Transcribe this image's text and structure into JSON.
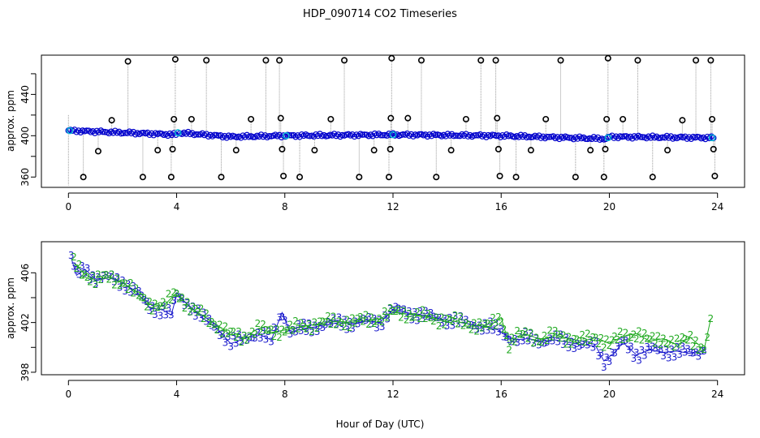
{
  "figure": {
    "title": "HDP_090714  CO2 Timeseries",
    "xlabel": "Hour of Day (UTC)"
  },
  "colors": {
    "raw_points": "#000000",
    "drop_lines": "#9a9a9a",
    "smoothed": "#0000cc",
    "highlight": "#00bcd4",
    "series_3": "#1a1acc",
    "series_2": "#22aa22"
  },
  "chart_data": [
    {
      "type": "scatter",
      "name": "raw-timeseries",
      "title": "",
      "xlabel": "",
      "ylabel": "approx. ppm",
      "xlim": [
        -1,
        25
      ],
      "ylim": [
        350,
        478
      ],
      "xticks": [
        0,
        4,
        8,
        12,
        16,
        20,
        24
      ],
      "yticks": [
        360,
        400,
        440
      ],
      "yticks_minor": [
        380,
        420,
        460
      ],
      "baseline": [
        [
          0,
          405
        ],
        [
          2,
          403
        ],
        [
          4,
          401
        ],
        [
          4.01,
          403
        ],
        [
          6,
          399
        ],
        [
          7.9,
          400
        ],
        [
          8,
          400
        ],
        [
          12,
          401
        ],
        [
          15.95,
          400
        ],
        [
          16,
          400
        ],
        [
          19.9,
          397
        ],
        [
          20,
          399
        ],
        [
          24,
          398
        ]
      ],
      "outliers": [
        {
          "x": 0.55,
          "y": 360
        },
        {
          "x": 1.1,
          "y": 385
        },
        {
          "x": 1.6,
          "y": 415
        },
        {
          "x": 2.2,
          "y": 472
        },
        {
          "x": 2.75,
          "y": 360
        },
        {
          "x": 3.3,
          "y": 386
        },
        {
          "x": 3.8,
          "y": 360
        },
        {
          "x": 3.85,
          "y": 387
        },
        {
          "x": 3.9,
          "y": 416
        },
        {
          "x": 3.95,
          "y": 474
        },
        {
          "x": 4.55,
          "y": 416
        },
        {
          "x": 5.1,
          "y": 473
        },
        {
          "x": 5.65,
          "y": 360
        },
        {
          "x": 6.2,
          "y": 386
        },
        {
          "x": 6.75,
          "y": 416
        },
        {
          "x": 7.3,
          "y": 473
        },
        {
          "x": 7.8,
          "y": 473
        },
        {
          "x": 7.85,
          "y": 417
        },
        {
          "x": 7.9,
          "y": 387
        },
        {
          "x": 7.95,
          "y": 361
        },
        {
          "x": 8.55,
          "y": 360
        },
        {
          "x": 9.1,
          "y": 386
        },
        {
          "x": 9.7,
          "y": 416
        },
        {
          "x": 10.2,
          "y": 473
        },
        {
          "x": 10.75,
          "y": 360
        },
        {
          "x": 11.3,
          "y": 386
        },
        {
          "x": 11.85,
          "y": 360
        },
        {
          "x": 11.9,
          "y": 387
        },
        {
          "x": 11.92,
          "y": 417
        },
        {
          "x": 11.95,
          "y": 475
        },
        {
          "x": 12.55,
          "y": 417
        },
        {
          "x": 13.05,
          "y": 473
        },
        {
          "x": 13.6,
          "y": 360
        },
        {
          "x": 14.15,
          "y": 386
        },
        {
          "x": 14.7,
          "y": 416
        },
        {
          "x": 15.25,
          "y": 473
        },
        {
          "x": 15.8,
          "y": 473
        },
        {
          "x": 15.85,
          "y": 417
        },
        {
          "x": 15.9,
          "y": 387
        },
        {
          "x": 15.95,
          "y": 361
        },
        {
          "x": 16.55,
          "y": 360
        },
        {
          "x": 17.1,
          "y": 386
        },
        {
          "x": 17.65,
          "y": 416
        },
        {
          "x": 18.2,
          "y": 473
        },
        {
          "x": 18.75,
          "y": 360
        },
        {
          "x": 19.3,
          "y": 386
        },
        {
          "x": 19.8,
          "y": 360
        },
        {
          "x": 19.85,
          "y": 387
        },
        {
          "x": 19.9,
          "y": 416
        },
        {
          "x": 19.95,
          "y": 475
        },
        {
          "x": 20.5,
          "y": 416
        },
        {
          "x": 21.05,
          "y": 473
        },
        {
          "x": 21.6,
          "y": 360
        },
        {
          "x": 22.15,
          "y": 386
        },
        {
          "x": 22.7,
          "y": 415
        },
        {
          "x": 23.2,
          "y": 473
        },
        {
          "x": 23.75,
          "y": 473
        },
        {
          "x": 23.8,
          "y": 416
        },
        {
          "x": 23.85,
          "y": 387
        },
        {
          "x": 23.9,
          "y": 361
        }
      ]
    },
    {
      "type": "line",
      "name": "smoothed-timeseries",
      "title": "",
      "xlabel": "",
      "ylabel": "approx. ppm",
      "xlim": [
        -1,
        25
      ],
      "ylim": [
        397.8,
        408.5
      ],
      "xticks": [
        0,
        4,
        8,
        12,
        16,
        20,
        24
      ],
      "yticks": [
        398,
        402,
        406
      ],
      "yticks_minor": [
        400,
        404
      ],
      "series": [
        {
          "name": "3",
          "symbol": "3",
          "x": [
            0.1,
            0.3,
            0.6,
            1.0,
            1.5,
            2.0,
            2.5,
            3.0,
            3.5,
            3.8,
            4.0,
            4.5,
            5.0,
            5.5,
            6.0,
            6.5,
            7.0,
            7.5,
            7.9,
            8.2,
            8.5,
            9.0,
            9.5,
            10.0,
            10.5,
            11.0,
            11.5,
            12.0,
            12.5,
            13.0,
            13.5,
            14.0,
            14.5,
            15.0,
            15.5,
            15.9,
            16.2,
            16.5,
            17.0,
            17.5,
            18.0,
            18.5,
            19.0,
            19.5,
            19.8,
            20.2,
            20.5,
            21.0,
            21.5,
            22.0,
            22.5,
            23.0,
            23.5
          ],
          "values": [
            407.2,
            405.8,
            406.3,
            405.5,
            405.6,
            405.2,
            404.5,
            403.2,
            403.0,
            402.6,
            404.2,
            403.3,
            402.3,
            401.5,
            400.3,
            400.7,
            401.1,
            400.6,
            402.8,
            401.2,
            401.4,
            401.6,
            401.8,
            402.0,
            401.9,
            402.1,
            402.0,
            403.0,
            402.8,
            402.6,
            402.4,
            402.2,
            402.0,
            401.8,
            401.6,
            401.4,
            400.9,
            400.6,
            400.7,
            400.5,
            400.6,
            400.4,
            400.2,
            400.1,
            398.9,
            399.6,
            400.4,
            399.4,
            399.8,
            399.6,
            399.7,
            399.5,
            399.7
          ]
        },
        {
          "name": "2",
          "symbol": "2",
          "x": [
            0.2,
            0.6,
            1.0,
            1.5,
            2.0,
            2.5,
            3.0,
            3.5,
            4.0,
            4.5,
            5.0,
            5.5,
            6.0,
            6.5,
            7.0,
            7.5,
            8.0,
            8.5,
            9.0,
            9.5,
            10.0,
            10.5,
            11.0,
            11.5,
            12.0,
            12.5,
            13.0,
            13.5,
            14.0,
            14.5,
            15.0,
            15.5,
            16.0,
            16.3,
            16.6,
            17.0,
            17.5,
            18.0,
            18.5,
            19.0,
            19.5,
            20.0,
            20.5,
            21.0,
            21.5,
            22.0,
            22.5,
            23.0,
            23.5,
            23.75
          ],
          "values": [
            406.8,
            405.9,
            405.4,
            405.6,
            405.3,
            404.3,
            403.5,
            403.3,
            404.4,
            403.2,
            402.5,
            401.8,
            401.0,
            400.8,
            401.5,
            401.2,
            401.4,
            401.6,
            401.8,
            402.0,
            402.1,
            402.0,
            402.2,
            402.3,
            402.8,
            402.7,
            402.5,
            402.3,
            402.2,
            402.0,
            401.8,
            401.6,
            402.4,
            400.2,
            400.9,
            401.0,
            400.6,
            401.0,
            400.7,
            400.5,
            400.8,
            400.3,
            400.9,
            401.1,
            400.5,
            400.7,
            400.2,
            400.8,
            399.8,
            402.3
          ]
        }
      ]
    }
  ]
}
